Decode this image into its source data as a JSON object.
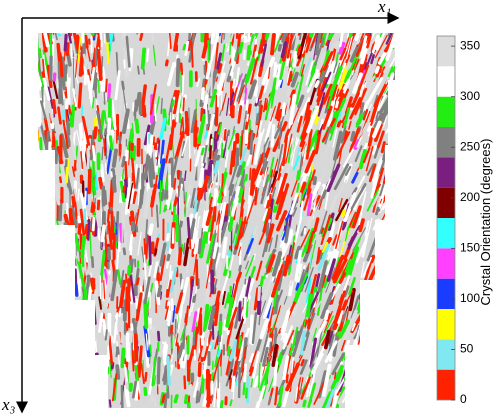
{
  "chart_data": {
    "type": "colormap",
    "x_label": "x₁",
    "y_label": "x₃",
    "colorbar": {
      "label": "Crystal Orientation (degrees)",
      "clim": [
        0,
        360
      ],
      "ticks": [
        0,
        50,
        100,
        150,
        200,
        250,
        300,
        350
      ],
      "bins": [
        0,
        30,
        60,
        90,
        120,
        150,
        180,
        210,
        240,
        270,
        300,
        330,
        360
      ],
      "colors": [
        "#ff2200",
        "#80e8f0",
        "#ffff00",
        "#1a3cff",
        "#ff40ff",
        "#33ffff",
        "#800000",
        "#7a1f80",
        "#808080",
        "#22ee11",
        "#ffffff",
        "#dddddd"
      ]
    }
  }
}
